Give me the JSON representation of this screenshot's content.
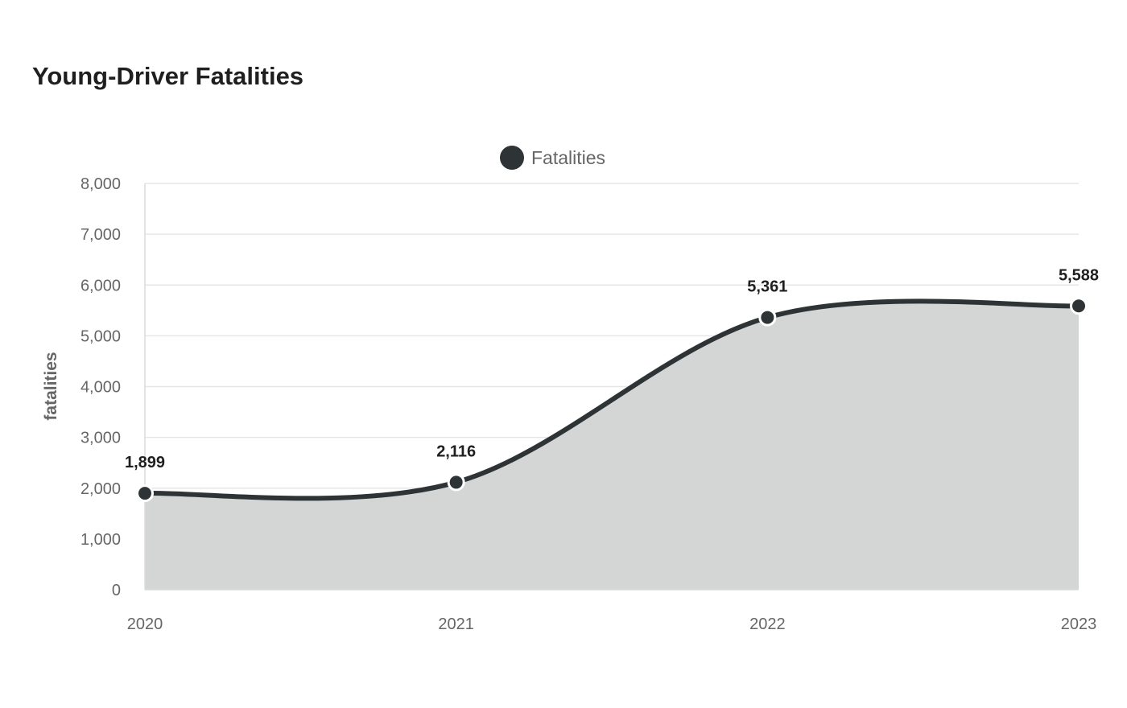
{
  "page": {
    "title": "Young-Driver Fatalities"
  },
  "colors": {
    "line": "#2e3436",
    "area": "#d4d6d5",
    "grid": "#e6e6e6",
    "axis": "#dcdcdc",
    "marker_border": "#ffffff"
  },
  "chart_data": {
    "type": "area",
    "title": "Young-Driver Fatalities",
    "xlabel": "",
    "ylabel": "fatalities",
    "categories": [
      "2020",
      "2021",
      "2022",
      "2023"
    ],
    "series": [
      {
        "name": "Fatalities",
        "values": [
          1899,
          2116,
          5361,
          5588
        ],
        "labels": [
          "1,899",
          "2,116",
          "5,361",
          "5,588"
        ]
      }
    ],
    "ylim": [
      0,
      8000
    ],
    "yticks": [
      0,
      1000,
      2000,
      3000,
      4000,
      5000,
      6000,
      7000,
      8000
    ],
    "ytick_labels": [
      "0",
      "1,000",
      "2,000",
      "3,000",
      "4,000",
      "5,000",
      "6,000",
      "7,000",
      "8,000"
    ],
    "grid": true,
    "smooth": true,
    "legend": "top-center"
  }
}
